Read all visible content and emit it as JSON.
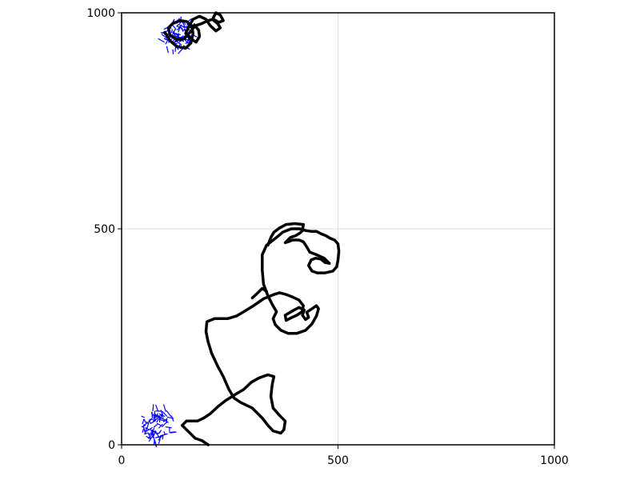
{
  "chart_data": {
    "type": "line",
    "title": "",
    "xlabel": "",
    "ylabel": "",
    "xlim": [
      0,
      1000
    ],
    "ylim": [
      0,
      1000
    ],
    "xticks": [
      0,
      500,
      1000
    ],
    "yticks": [
      0,
      500,
      1000
    ],
    "xtick_labels": [
      "0",
      "500",
      "1000"
    ],
    "ytick_labels": [
      "0",
      "500",
      "1000"
    ],
    "grid": true,
    "legend": "none",
    "series": [
      {
        "kind": "path",
        "color": "#000000",
        "points": [
          [
            200,
            0
          ],
          [
            185,
            10
          ],
          [
            170,
            15
          ],
          [
            155,
            30
          ],
          [
            140,
            45
          ],
          [
            150,
            55
          ],
          [
            175,
            55
          ],
          [
            190,
            62
          ],
          [
            205,
            72
          ],
          [
            222,
            88
          ],
          [
            240,
            102
          ],
          [
            265,
            118
          ],
          [
            282,
            128
          ],
          [
            300,
            145
          ],
          [
            318,
            155
          ],
          [
            338,
            162
          ],
          [
            352,
            158
          ],
          [
            348,
            140
          ],
          [
            345,
            112
          ],
          [
            350,
            85
          ],
          [
            365,
            68
          ],
          [
            378,
            55
          ],
          [
            375,
            35
          ],
          [
            368,
            27
          ],
          [
            350,
            32
          ],
          [
            338,
            45
          ],
          [
            325,
            62
          ],
          [
            315,
            72
          ],
          [
            302,
            85
          ],
          [
            275,
            98
          ],
          [
            260,
            108
          ],
          [
            248,
            128
          ],
          [
            235,
            158
          ],
          [
            222,
            182
          ],
          [
            208,
            212
          ],
          [
            200,
            238
          ],
          [
            195,
            262
          ],
          [
            197,
            285
          ],
          [
            215,
            292
          ],
          [
            245,
            292
          ],
          [
            265,
            298
          ],
          [
            282,
            308
          ],
          [
            305,
            322
          ],
          [
            328,
            338
          ],
          [
            352,
            348
          ],
          [
            365,
            352
          ],
          [
            380,
            348
          ],
          [
            395,
            342
          ],
          [
            410,
            335
          ],
          [
            420,
            322
          ],
          [
            417,
            308
          ],
          [
            405,
            300
          ],
          [
            392,
            294
          ],
          [
            380,
            288
          ],
          [
            378,
            300
          ],
          [
            395,
            310
          ],
          [
            410,
            318
          ],
          [
            422,
            312
          ],
          [
            418,
            300
          ],
          [
            425,
            290
          ],
          [
            432,
            295
          ],
          [
            428,
            307
          ],
          [
            440,
            315
          ],
          [
            450,
            322
          ],
          [
            455,
            315
          ],
          [
            450,
            298
          ],
          [
            440,
            280
          ],
          [
            425,
            265
          ],
          [
            405,
            258
          ],
          [
            385,
            258
          ],
          [
            368,
            265
          ],
          [
            355,
            278
          ],
          [
            350,
            292
          ],
          [
            358,
            308
          ],
          [
            348,
            325
          ],
          [
            338,
            345
          ],
          [
            328,
            372
          ],
          [
            325,
            405
          ],
          [
            325,
            440
          ],
          [
            335,
            462
          ],
          [
            358,
            480
          ],
          [
            372,
            492
          ],
          [
            392,
            500
          ],
          [
            412,
            500
          ],
          [
            425,
            496
          ],
          [
            438,
            494
          ],
          [
            450,
            494
          ],
          [
            462,
            488
          ],
          [
            472,
            484
          ],
          [
            482,
            478
          ],
          [
            492,
            474
          ],
          [
            500,
            465
          ],
          [
            502,
            448
          ],
          [
            500,
            428
          ],
          [
            497,
            412
          ],
          [
            488,
            402
          ],
          [
            470,
            398
          ],
          [
            452,
            398
          ],
          [
            440,
            402
          ],
          [
            432,
            415
          ],
          [
            438,
            428
          ],
          [
            448,
            432
          ],
          [
            460,
            430
          ],
          [
            470,
            422
          ],
          [
            480,
            420
          ],
          [
            468,
            432
          ],
          [
            450,
            440
          ],
          [
            435,
            446
          ],
          [
            428,
            458
          ],
          [
            420,
            470
          ],
          [
            410,
            474
          ],
          [
            395,
            474
          ],
          [
            385,
            470
          ],
          [
            378,
            468
          ],
          [
            390,
            480
          ],
          [
            402,
            484
          ],
          [
            412,
            490
          ],
          [
            418,
            496
          ],
          [
            420,
            510
          ],
          [
            400,
            512
          ],
          [
            380,
            510
          ],
          [
            365,
            502
          ],
          [
            352,
            492
          ],
          [
            345,
            480
          ],
          [
            338,
            462
          ]
        ]
      },
      {
        "kind": "path",
        "color": "#000000",
        "points": [
          [
            302,
            340
          ],
          [
            315,
            352
          ],
          [
            325,
            362
          ],
          [
            335,
            355
          ]
        ]
      },
      {
        "kind": "path",
        "color": "#000000",
        "points": [
          [
            100,
            955
          ],
          [
            112,
            935
          ],
          [
            128,
            922
          ],
          [
            148,
            918
          ],
          [
            160,
            930
          ],
          [
            165,
            952
          ],
          [
            162,
            970
          ],
          [
            150,
            980
          ],
          [
            135,
            982
          ],
          [
            118,
            975
          ],
          [
            108,
            965
          ],
          [
            112,
            948
          ],
          [
            128,
            938
          ],
          [
            145,
            940
          ],
          [
            158,
            955
          ],
          [
            170,
            970
          ],
          [
            185,
            975
          ],
          [
            200,
            982
          ],
          [
            212,
            985
          ],
          [
            225,
            978
          ],
          [
            235,
            982
          ],
          [
            228,
            995
          ],
          [
            218,
            1000
          ],
          [
            210,
            985
          ],
          [
            222,
            975
          ],
          [
            228,
            965
          ],
          [
            218,
            958
          ],
          [
            205,
            970
          ],
          [
            195,
            985
          ],
          [
            180,
            992
          ],
          [
            165,
            985
          ],
          [
            155,
            968
          ],
          [
            148,
            952
          ],
          [
            160,
            940
          ],
          [
            172,
            932
          ],
          [
            180,
            945
          ],
          [
            178,
            960
          ],
          [
            168,
            972
          ]
        ]
      }
    ],
    "clusters": [
      {
        "kind": "segments",
        "color": "#0000ff",
        "center": [
          85,
          45
        ],
        "radius": 38,
        "count": 80
      },
      {
        "kind": "segments",
        "color": "#0000ff",
        "center": [
          130,
          950
        ],
        "radius": 38,
        "count": 80
      }
    ]
  }
}
